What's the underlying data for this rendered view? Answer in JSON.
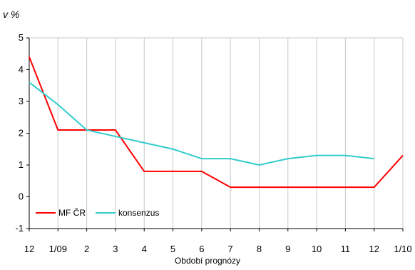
{
  "chart_data": {
    "type": "line",
    "unit_label": "v %",
    "categories": [
      "12",
      "1/09",
      "2",
      "3",
      "4",
      "5",
      "6",
      "7",
      "8",
      "9",
      "10",
      "11",
      "12",
      "1/10"
    ],
    "xlabel": "Období prognózy",
    "ylim": [
      -1,
      5
    ],
    "yticks": [
      -1,
      0,
      1,
      2,
      3,
      4,
      5
    ],
    "grid": true,
    "legend_position": "bottom-left",
    "series": [
      {
        "name": "MF ČR",
        "color": "#ff0000",
        "values": [
          4.4,
          2.1,
          2.1,
          2.1,
          0.8,
          0.8,
          0.8,
          0.3,
          0.3,
          0.3,
          0.3,
          0.3,
          0.3,
          1.3
        ]
      },
      {
        "name": "konsenzus",
        "color": "#33cccc",
        "values": [
          3.6,
          2.9,
          2.1,
          1.9,
          1.7,
          1.5,
          1.2,
          1.2,
          1.0,
          1.2,
          1.3,
          1.3,
          1.2,
          null
        ]
      }
    ]
  }
}
